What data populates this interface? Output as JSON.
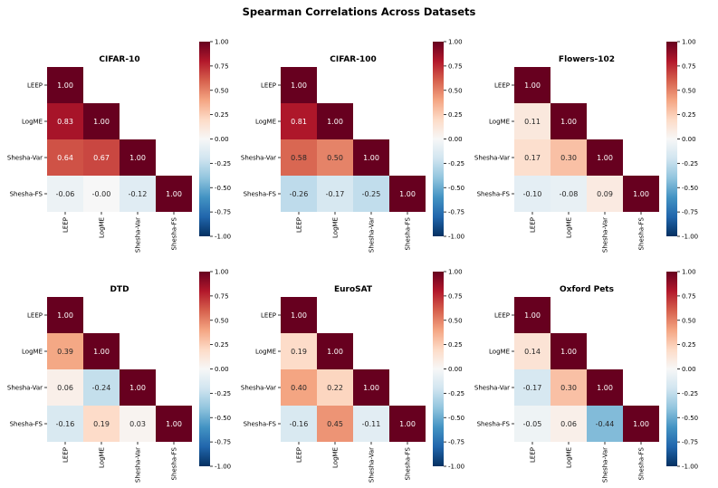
{
  "figure_title": "Spearman Correlations Across Datasets",
  "chart_data": [
    {
      "type": "heatmap",
      "title": "CIFAR-10",
      "labels": [
        "LEEP",
        "LogME",
        "Shesha-Var",
        "Shesha-FS"
      ],
      "matrix": [
        [
          1.0
        ],
        [
          0.83,
          1.0
        ],
        [
          0.64,
          0.67,
          1.0
        ],
        [
          -0.06,
          -0.0,
          -0.12,
          1.0
        ]
      ],
      "value_labels": [
        [
          "1.00"
        ],
        [
          "0.83",
          "1.00"
        ],
        [
          "0.64",
          "0.67",
          "1.00"
        ],
        [
          "-0.06",
          "-0.00",
          "-0.12",
          "1.00"
        ]
      ],
      "vmin": -1.0,
      "vmax": 1.0,
      "colorbar_ticks": [
        "1.00",
        "0.75",
        "0.50",
        "0.25",
        "0.00",
        "-0.25",
        "-0.50",
        "-0.75",
        "-1.00"
      ]
    },
    {
      "type": "heatmap",
      "title": "CIFAR-100",
      "labels": [
        "LEEP",
        "LogME",
        "Shesha-Var",
        "Shesha-FS"
      ],
      "matrix": [
        [
          1.0
        ],
        [
          0.81,
          1.0
        ],
        [
          0.58,
          0.5,
          1.0
        ],
        [
          -0.26,
          -0.17,
          -0.25,
          1.0
        ]
      ],
      "value_labels": [
        [
          "1.00"
        ],
        [
          "0.81",
          "1.00"
        ],
        [
          "0.58",
          "0.50",
          "1.00"
        ],
        [
          "-0.26",
          "-0.17",
          "-0.25",
          "1.00"
        ]
      ],
      "vmin": -1.0,
      "vmax": 1.0,
      "colorbar_ticks": [
        "1.00",
        "0.75",
        "0.50",
        "0.25",
        "0.00",
        "-0.25",
        "-0.50",
        "-0.75",
        "-1.00"
      ]
    },
    {
      "type": "heatmap",
      "title": "Flowers-102",
      "labels": [
        "LEEP",
        "LogME",
        "Shesha-Var",
        "Shesha-FS"
      ],
      "matrix": [
        [
          1.0
        ],
        [
          0.11,
          1.0
        ],
        [
          0.17,
          0.3,
          1.0
        ],
        [
          -0.1,
          -0.08,
          0.09,
          1.0
        ]
      ],
      "value_labels": [
        [
          "1.00"
        ],
        [
          "0.11",
          "1.00"
        ],
        [
          "0.17",
          "0.30",
          "1.00"
        ],
        [
          "-0.10",
          "-0.08",
          "0.09",
          "1.00"
        ]
      ],
      "vmin": -1.0,
      "vmax": 1.0,
      "colorbar_ticks": [
        "1.00",
        "0.75",
        "0.50",
        "0.25",
        "0.00",
        "-0.25",
        "-0.50",
        "-0.75",
        "-1.00"
      ]
    },
    {
      "type": "heatmap",
      "title": "DTD",
      "labels": [
        "LEEP",
        "LogME",
        "Shesha-Var",
        "Shesha-FS"
      ],
      "matrix": [
        [
          1.0
        ],
        [
          0.39,
          1.0
        ],
        [
          0.06,
          -0.24,
          1.0
        ],
        [
          -0.16,
          0.19,
          0.03,
          1.0
        ]
      ],
      "value_labels": [
        [
          "1.00"
        ],
        [
          "0.39",
          "1.00"
        ],
        [
          "0.06",
          "-0.24",
          "1.00"
        ],
        [
          "-0.16",
          "0.19",
          "0.03",
          "1.00"
        ]
      ],
      "vmin": -1.0,
      "vmax": 1.0,
      "colorbar_ticks": [
        "1.00",
        "0.75",
        "0.50",
        "0.25",
        "0.00",
        "-0.25",
        "-0.50",
        "-0.75",
        "-1.00"
      ]
    },
    {
      "type": "heatmap",
      "title": "EuroSAT",
      "labels": [
        "LEEP",
        "LogME",
        "Shesha-Var",
        "Shesha-FS"
      ],
      "matrix": [
        [
          1.0
        ],
        [
          0.19,
          1.0
        ],
        [
          0.4,
          0.22,
          1.0
        ],
        [
          -0.16,
          0.45,
          -0.11,
          1.0
        ]
      ],
      "value_labels": [
        [
          "1.00"
        ],
        [
          "0.19",
          "1.00"
        ],
        [
          "0.40",
          "0.22",
          "1.00"
        ],
        [
          "-0.16",
          "0.45",
          "-0.11",
          "1.00"
        ]
      ],
      "vmin": -1.0,
      "vmax": 1.0,
      "colorbar_ticks": [
        "1.00",
        "0.75",
        "0.50",
        "0.25",
        "0.00",
        "-0.25",
        "-0.50",
        "-0.75",
        "-1.00"
      ]
    },
    {
      "type": "heatmap",
      "title": "Oxford Pets",
      "labels": [
        "LEEP",
        "LogME",
        "Shesha-Var",
        "Shesha-FS"
      ],
      "matrix": [
        [
          1.0
        ],
        [
          0.14,
          1.0
        ],
        [
          -0.17,
          0.3,
          1.0
        ],
        [
          -0.05,
          0.06,
          -0.44,
          1.0
        ]
      ],
      "value_labels": [
        [
          "1.00"
        ],
        [
          "0.14",
          "1.00"
        ],
        [
          "-0.17",
          "0.30",
          "1.00"
        ],
        [
          "-0.05",
          "0.06",
          "-0.44",
          "1.00"
        ]
      ],
      "vmin": -1.0,
      "vmax": 1.0,
      "colorbar_ticks": [
        "1.00",
        "0.75",
        "0.50",
        "0.25",
        "0.00",
        "-0.25",
        "-0.50",
        "-0.75",
        "-1.00"
      ]
    }
  ]
}
